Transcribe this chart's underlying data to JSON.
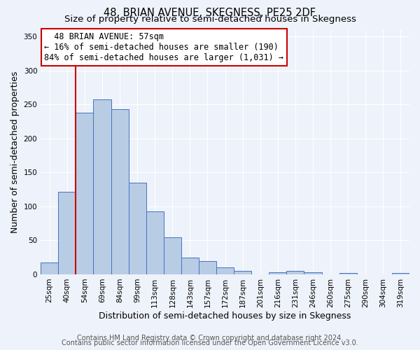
{
  "title": "48, BRIAN AVENUE, SKEGNESS, PE25 2DF",
  "subtitle": "Size of property relative to semi-detached houses in Skegness",
  "xlabel": "Distribution of semi-detached houses by size in Skegness",
  "ylabel": "Number of semi-detached properties",
  "bin_labels": [
    "25sqm",
    "40sqm",
    "54sqm",
    "69sqm",
    "84sqm",
    "99sqm",
    "113sqm",
    "128sqm",
    "143sqm",
    "157sqm",
    "172sqm",
    "187sqm",
    "201sqm",
    "216sqm",
    "231sqm",
    "246sqm",
    "260sqm",
    "275sqm",
    "290sqm",
    "304sqm",
    "319sqm"
  ],
  "bar_heights": [
    17,
    122,
    238,
    258,
    243,
    135,
    93,
    55,
    25,
    20,
    10,
    5,
    0,
    3,
    5,
    3,
    0,
    2,
    0,
    0,
    2
  ],
  "bar_color": "#b8cce4",
  "bar_edge_color": "#4472c4",
  "property_sqm": 57,
  "property_label": "48 BRIAN AVENUE: 57sqm",
  "pct_smaller": 16,
  "pct_larger": 84,
  "num_smaller": 190,
  "num_larger": 1031,
  "vline_color": "#cc0000",
  "annotation_box_edge": "#cc0000",
  "ylim": [
    0,
    360
  ],
  "yticks": [
    0,
    50,
    100,
    150,
    200,
    250,
    300,
    350
  ],
  "footer_line1": "Contains HM Land Registry data © Crown copyright and database right 2024.",
  "footer_line2": "Contains public sector information licensed under the Open Government Licence v3.0.",
  "background_color": "#eef2fa",
  "title_fontsize": 10.5,
  "subtitle_fontsize": 9.5,
  "axis_label_fontsize": 9,
  "tick_fontsize": 7.5,
  "annotation_fontsize": 8.5,
  "footer_fontsize": 7
}
